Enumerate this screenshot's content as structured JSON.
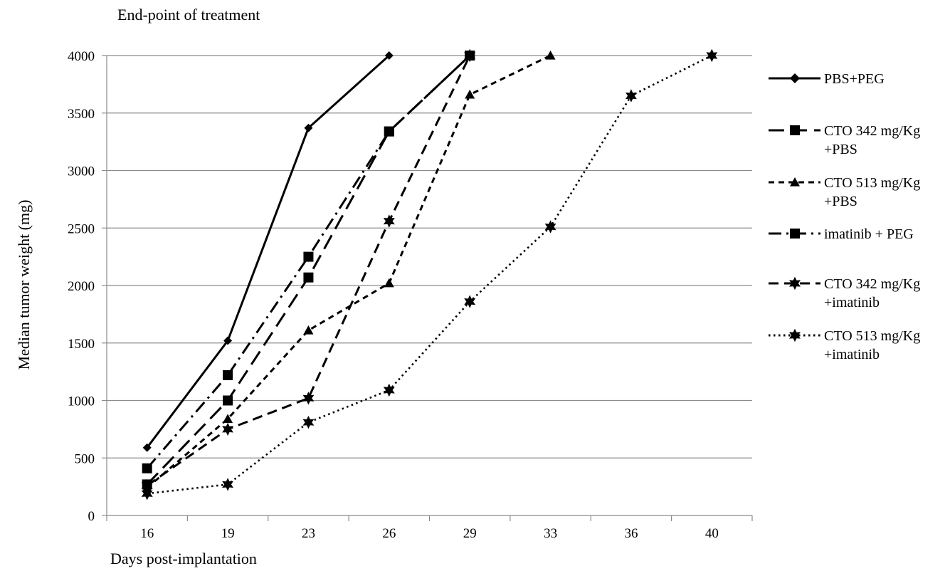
{
  "chart_data": {
    "type": "line",
    "title": "End-point of treatment",
    "xlabel": "Days  post-implantation",
    "ylabel": "Median tumor  weight (mg)",
    "categories": [
      "16",
      "19",
      "23",
      "26",
      "29",
      "33",
      "36",
      "40"
    ],
    "ylim": [
      0,
      4000
    ],
    "yticks": [
      0,
      500,
      1000,
      1500,
      2000,
      2500,
      3000,
      3500,
      4000
    ],
    "grid": "horizontal",
    "legend_position": "right",
    "series": [
      {
        "name": "PBS+PEG",
        "legend_lines": [
          "PBS+PEG"
        ],
        "marker": "diamond",
        "dash": "solid",
        "values": [
          590,
          1520,
          3370,
          4000,
          null,
          null,
          null,
          null
        ]
      },
      {
        "name": "CTO 342 mg/Kg +PBS",
        "legend_lines": [
          "CTO 342 mg/Kg",
          "+PBS"
        ],
        "marker": "square",
        "dash": "long-dash",
        "values": [
          270,
          1000,
          2070,
          3340,
          4000,
          null,
          null,
          null
        ]
      },
      {
        "name": "CTO 513 mg/Kg +PBS",
        "legend_lines": [
          "CTO 513 mg/Kg",
          "+PBS"
        ],
        "marker": "triangle",
        "dash": "short-dash",
        "values": [
          240,
          840,
          1610,
          2020,
          3660,
          4000,
          null,
          null
        ]
      },
      {
        "name": "imatinib + PEG",
        "legend_lines": [
          "imatinib +  PEG"
        ],
        "marker": "square",
        "dash": "dash-dot",
        "values": [
          410,
          1220,
          2250,
          3340,
          4000,
          null,
          null,
          null
        ]
      },
      {
        "name": "CTO 342 mg/Kg +imatinib",
        "legend_lines": [
          "CTO 342 mg/Kg",
          "+imatinib"
        ],
        "marker": "star",
        "dash": "dash",
        "values": [
          260,
          750,
          1020,
          2560,
          4000,
          null,
          null,
          null
        ]
      },
      {
        "name": "CTO 513 mg/Kg +imatinib",
        "legend_lines": [
          "CTO 513 mg/Kg",
          "+imatinib"
        ],
        "marker": "star",
        "dash": "dotted",
        "values": [
          190,
          270,
          810,
          1090,
          1860,
          2510,
          3650,
          4000
        ]
      }
    ]
  }
}
